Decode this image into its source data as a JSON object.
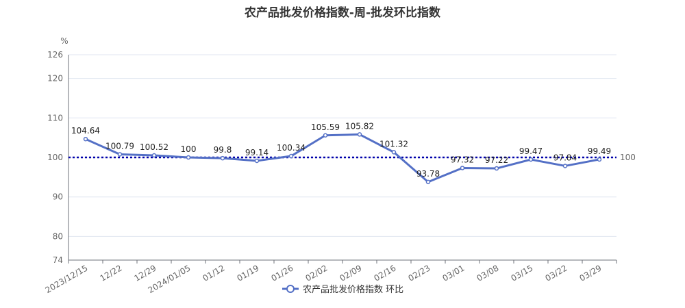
{
  "chart_data": {
    "type": "line",
    "title": "农产品批发价格指数-周-批发环比指数",
    "y_unit": "%",
    "ylim": [
      74,
      126
    ],
    "yticks": [
      74,
      80,
      90,
      100,
      110,
      120,
      126
    ],
    "grid": true,
    "legend_position": "bottom",
    "categories": [
      "2023/12/15",
      "12/22",
      "12/29",
      "2024/01/05",
      "01/12",
      "01/19",
      "01/26",
      "02/02",
      "02/09",
      "02/16",
      "02/23",
      "03/01",
      "03/08",
      "03/15",
      "03/22",
      "03/29"
    ],
    "series": [
      {
        "name": "农产品批发价格指数 环比",
        "values": [
          104.64,
          100.79,
          100.52,
          100,
          99.8,
          99.14,
          100.34,
          105.59,
          105.82,
          101.32,
          93.78,
          97.32,
          97.22,
          99.47,
          97.84,
          99.49
        ],
        "color": "#5470c6"
      }
    ],
    "reference_line": {
      "value": 100,
      "label": "100",
      "color": "#0000aa"
    }
  }
}
